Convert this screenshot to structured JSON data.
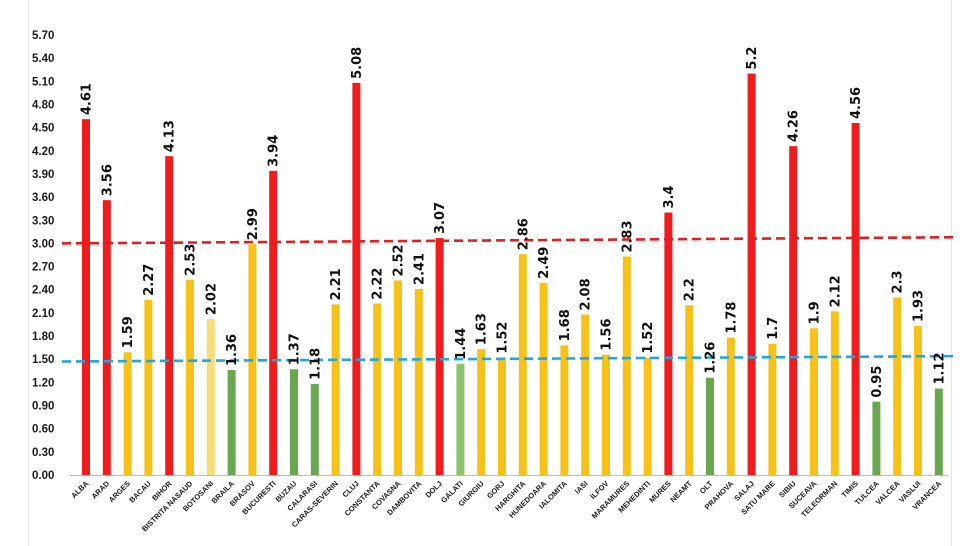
{
  "chart_data": {
    "type": "bar",
    "title": "",
    "xlabel": "",
    "ylabel": "",
    "ylim": [
      0,
      5.7
    ],
    "yticks": [
      "0.00",
      "0.30",
      "0.60",
      "0.90",
      "1.20",
      "1.50",
      "1.80",
      "2.10",
      "2.40",
      "2.70",
      "3.00",
      "3.30",
      "3.60",
      "3.90",
      "4.20",
      "4.50",
      "4.80",
      "5.10",
      "5.40",
      "5.70"
    ],
    "categories": [
      "ALBA",
      "ARAD",
      "ARGES",
      "BACAU",
      "BIHOR",
      "BISTRITA NASAUD",
      "BOTOSANI",
      "BRAILA",
      "BRASOV",
      "BUCURESTI",
      "BUZAU",
      "CALARASI",
      "CARAS-SEVERIN",
      "CLUJ",
      "CONSTANTA",
      "COVASNA",
      "DAMBOVITA",
      "DOLJ",
      "GALATI",
      "GIURGIU",
      "GORJ",
      "HARGHITA",
      "HUNEDOARA",
      "IALOMITA",
      "IASI",
      "ILFOV",
      "MARAMURES",
      "MEHEDINTI",
      "MURES",
      "NEAMT",
      "OLT",
      "PRAHOVA",
      "SALAJ",
      "SATU MARE",
      "SIBIU",
      "SUCEAVA",
      "TELEORMAN",
      "TIMIS",
      "TULCEA",
      "VALCEA",
      "VASLUI",
      "VRANCEA"
    ],
    "values": [
      4.61,
      3.56,
      1.59,
      2.27,
      4.13,
      2.53,
      2.02,
      1.36,
      2.99,
      3.94,
      1.37,
      1.18,
      2.21,
      5.08,
      2.22,
      2.52,
      2.41,
      3.07,
      1.44,
      1.63,
      1.52,
      2.86,
      2.49,
      1.68,
      2.08,
      1.56,
      2.83,
      1.52,
      3.4,
      2.2,
      1.26,
      1.78,
      5.2,
      1.7,
      4.26,
      1.9,
      2.12,
      4.56,
      0.95,
      2.3,
      1.93,
      1.12
    ],
    "labels": [
      "4.61",
      "3.56",
      "1.59",
      "2.27",
      "4.13",
      "2.53",
      "2.02",
      "1.36",
      "2.99",
      "3.94",
      "1.37",
      "1.18",
      "2.21",
      "5.08",
      "2.22",
      "2.52",
      "2.41",
      "3.07",
      "1.44",
      "1.63",
      "1.52",
      "2.86",
      "2.49",
      "1.68",
      "2.08",
      "1.56",
      "2.83",
      "1.52",
      "3.4",
      "2.2",
      "1.26",
      "1.78",
      "5.2",
      "1.7",
      "4.26",
      "1.9",
      "2.12",
      "4.56",
      "0.95",
      "2.3",
      "1.93",
      "1.12"
    ],
    "colors": [
      "#ee1c1c",
      "#ee1c1c",
      "#f6c21a",
      "#f6c21a",
      "#ee1c1c",
      "#f6c21a",
      "#f9dc78",
      "#6aa84f",
      "#f6c21a",
      "#ee1c1c",
      "#6aa84f",
      "#6aa84f",
      "#f6c21a",
      "#ee1c1c",
      "#f6c21a",
      "#f6c21a",
      "#f6c21a",
      "#ee1c1c",
      "#8cc26a",
      "#f6c21a",
      "#f6c21a",
      "#f6c21a",
      "#f6c21a",
      "#f6c21a",
      "#f6c21a",
      "#f6c21a",
      "#f6c21a",
      "#f6c21a",
      "#ee1c1c",
      "#f6c21a",
      "#6aa84f",
      "#f6c21a",
      "#ee1c1c",
      "#f6c21a",
      "#ee1c1c",
      "#f6c21a",
      "#f6c21a",
      "#ee1c1c",
      "#6aa84f",
      "#f6c21a",
      "#f6c21a",
      "#6aa84f"
    ],
    "reference_lines": [
      {
        "name": "threshold-high",
        "y_start": 3.0,
        "y_end": 3.08,
        "color": "#e02020"
      },
      {
        "name": "threshold-low",
        "y_start": 1.47,
        "y_end": 1.54,
        "color": "#1ea7e0"
      }
    ],
    "grid": false,
    "legend": "none"
  }
}
